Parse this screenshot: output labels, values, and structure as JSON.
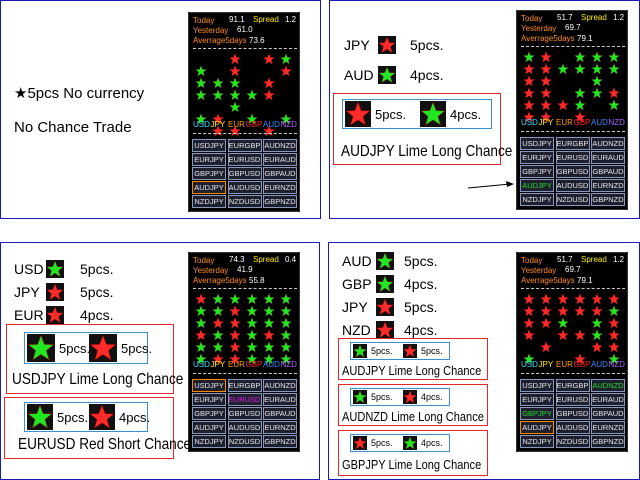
{
  "panels": [
    {
      "left_text": [
        "★5pcs No currency",
        "No Chance Trade"
      ],
      "indicator": {
        "today_label": "Today",
        "today": "91.1",
        "spread_label": "Spread",
        "spread": "1.2",
        "yesterday_label": "Yesterday",
        "yesterday": "61.0",
        "average_label": "Averrage5days",
        "average": "73.6",
        "currencies": [
          "USD",
          "JPY",
          "EUR",
          "GBP",
          "AUD",
          "NZD"
        ],
        "pairs": [
          "USDJPY",
          "EURGBP",
          "AUDNZD",
          "EURJPY",
          "EURUSD",
          "EURAUD",
          "GBPJPY",
          "GBPUSD",
          "GBPAUD",
          "AUDJPY",
          "AUDUSD",
          "EURNZD",
          "NZDJPY",
          "NZDUSD",
          "GBPNZD"
        ]
      }
    },
    {
      "items": [
        {
          "currency": "JPY",
          "star": "red",
          "count": "5pcs."
        },
        {
          "currency": "AUD",
          "star": "lime",
          "count": "4pcs."
        }
      ],
      "boxes": [
        {
          "chips": [
            {
              "star": "red",
              "count": "5pcs."
            },
            {
              "star": "lime",
              "count": "4pcs."
            }
          ],
          "caption": "AUDJPY Lime Long Chance"
        }
      ],
      "indicator": {
        "today_label": "Today",
        "today": "51.7",
        "spread_label": "Spread",
        "spread": "1.2",
        "yesterday_label": "Yesterday",
        "yesterday": "69.7",
        "average_label": "Averrage5days",
        "average": "79.1",
        "currencies": [
          "USD",
          "JPY",
          "EUR",
          "GBP",
          "AUD",
          "NZD"
        ],
        "pairs": [
          "USDJPY",
          "EURGBP",
          "AUDNZD",
          "EURJPY",
          "EURUSD",
          "EURAUD",
          "GBPJPY",
          "GBPUSD",
          "GBPAUD",
          "AUDJPY",
          "AUDUSD",
          "EURNZD",
          "NZDJPY",
          "NZDUSD",
          "GBPNZD"
        ]
      }
    },
    {
      "items": [
        {
          "currency": "USD",
          "star": "lime",
          "count": "5pcs."
        },
        {
          "currency": "JPY",
          "star": "red",
          "count": "5pcs."
        },
        {
          "currency": "EUR",
          "star": "red",
          "count": "4pcs."
        }
      ],
      "boxes": [
        {
          "chips": [
            {
              "star": "lime",
              "count": "5pcs."
            },
            {
              "star": "red",
              "count": "5pcs."
            }
          ],
          "caption": "USDJPY Lime Long Chance"
        },
        {
          "chips": [
            {
              "star": "lime",
              "count": "5pcs."
            },
            {
              "star": "red",
              "count": "4pcs."
            }
          ],
          "caption": "EURUSD Red Short Chance"
        }
      ],
      "indicator": {
        "today_label": "Today",
        "today": "74.3",
        "spread_label": "Spread",
        "spread": "0.4",
        "yesterday_label": "Yesterday",
        "yesterday": "41.9",
        "average_label": "Averrage5days",
        "average": "55.8",
        "currencies": [
          "USD",
          "JPY",
          "EUR",
          "GBP",
          "AUD",
          "NZD"
        ],
        "pairs": [
          "USDJPY",
          "EURGBP",
          "AUDNZD",
          "EURJPY",
          "EURUSD",
          "EURAUD",
          "GBPJPY",
          "GBPUSD",
          "GBPAUD",
          "AUDJPY",
          "AUDUSD",
          "EURNZD",
          "NZDJPY",
          "NZDUSD",
          "GBPNZD"
        ]
      }
    },
    {
      "items": [
        {
          "currency": "AUD",
          "star": "lime",
          "count": "5pcs."
        },
        {
          "currency": "GBP",
          "star": "lime",
          "count": "4pcs."
        },
        {
          "currency": "JPY",
          "star": "red",
          "count": "5pcs."
        },
        {
          "currency": "NZD",
          "star": "red",
          "count": "4pcs."
        }
      ],
      "boxes": [
        {
          "chips": [
            {
              "star": "lime",
              "count": "5pcs."
            },
            {
              "star": "red",
              "count": "5pcs."
            }
          ],
          "caption": "AUDJPY Lime Long Chance"
        },
        {
          "chips": [
            {
              "star": "lime",
              "count": "5pcs."
            },
            {
              "star": "red",
              "count": "4pcs."
            }
          ],
          "caption": "AUDNZD Lime Long Chance"
        },
        {
          "chips": [
            {
              "star": "red",
              "count": "5pcs."
            },
            {
              "star": "lime",
              "count": "4pcs."
            }
          ],
          "caption": "GBPJPY Lime Long Chance"
        }
      ],
      "indicator": {
        "today_label": "Today",
        "today": "51.7",
        "spread_label": "Spread",
        "spread": "1.2",
        "yesterday_label": "Yesterday",
        "yesterday": "69.7",
        "average_label": "Averrage5days",
        "average": "79.1",
        "currencies": [
          "USD",
          "JPY",
          "EUR",
          "GBP",
          "AUD",
          "NZD"
        ],
        "pairs": [
          "USDJPY",
          "EURGBP",
          "AUDNZD",
          "EURJPY",
          "EURUSD",
          "EURAUD",
          "GBPJPY",
          "GBPUSD",
          "GBPAUD",
          "AUDJPY",
          "AUDUSD",
          "EURNZD",
          "NZDJPY",
          "NZDUSD",
          "GBPNZD"
        ]
      }
    }
  ]
}
